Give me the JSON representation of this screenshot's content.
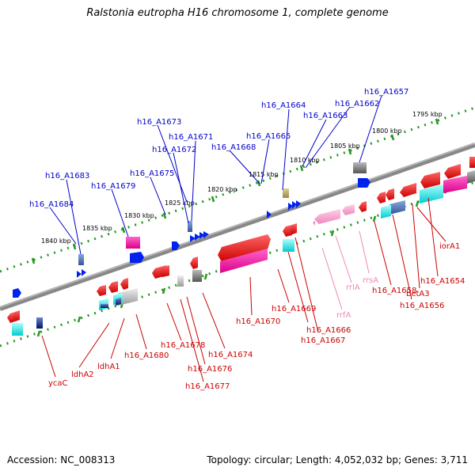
{
  "header": {
    "title": "Ralstonia eutropha H16 chromosome 1, complete genome"
  },
  "footer": {
    "accession": "Accession: NC_008313",
    "summary": "Topology: circular; Length: 4,052,032 bp; Genes: 3,711"
  },
  "scale": {
    "ticks": [
      "1795 kbp",
      "1800 kbp",
      "1805 kbp",
      "1810 kbp",
      "1815 kbp",
      "1820 kbp",
      "1825 kbp",
      "1830 kbp",
      "1835 kbp",
      "1840 kbp"
    ]
  },
  "labels": {
    "forward": [
      "h16_A1657",
      "h16_A1662",
      "h16_A1663",
      "h16_A1664",
      "h16_A1665",
      "h16_A1668",
      "h16_A1671",
      "h16_A1672",
      "h16_A1673",
      "h16_A1675",
      "h16_A1679",
      "h16_A1683",
      "h16_A1684"
    ],
    "reverse": [
      "iorA1",
      "h16_A1654",
      "betA3",
      "h16_A1656",
      "h16_A1658",
      "rrsA",
      "rrlA",
      "rrfA",
      "h16_A1666",
      "h16_A1667",
      "h16_A1669",
      "h16_A1670",
      "h16_A1674",
      "h16_A1676",
      "h16_A1677",
      "h16_A1678",
      "h16_A1680",
      "ldhA1",
      "ldhA2",
      "ycaC"
    ]
  },
  "colors": {
    "forward_label": "#0000cc",
    "reverse_label": "#cc0000",
    "rrna_label": "#ee88bb",
    "tick": "#229922",
    "backbone": "#888888"
  }
}
